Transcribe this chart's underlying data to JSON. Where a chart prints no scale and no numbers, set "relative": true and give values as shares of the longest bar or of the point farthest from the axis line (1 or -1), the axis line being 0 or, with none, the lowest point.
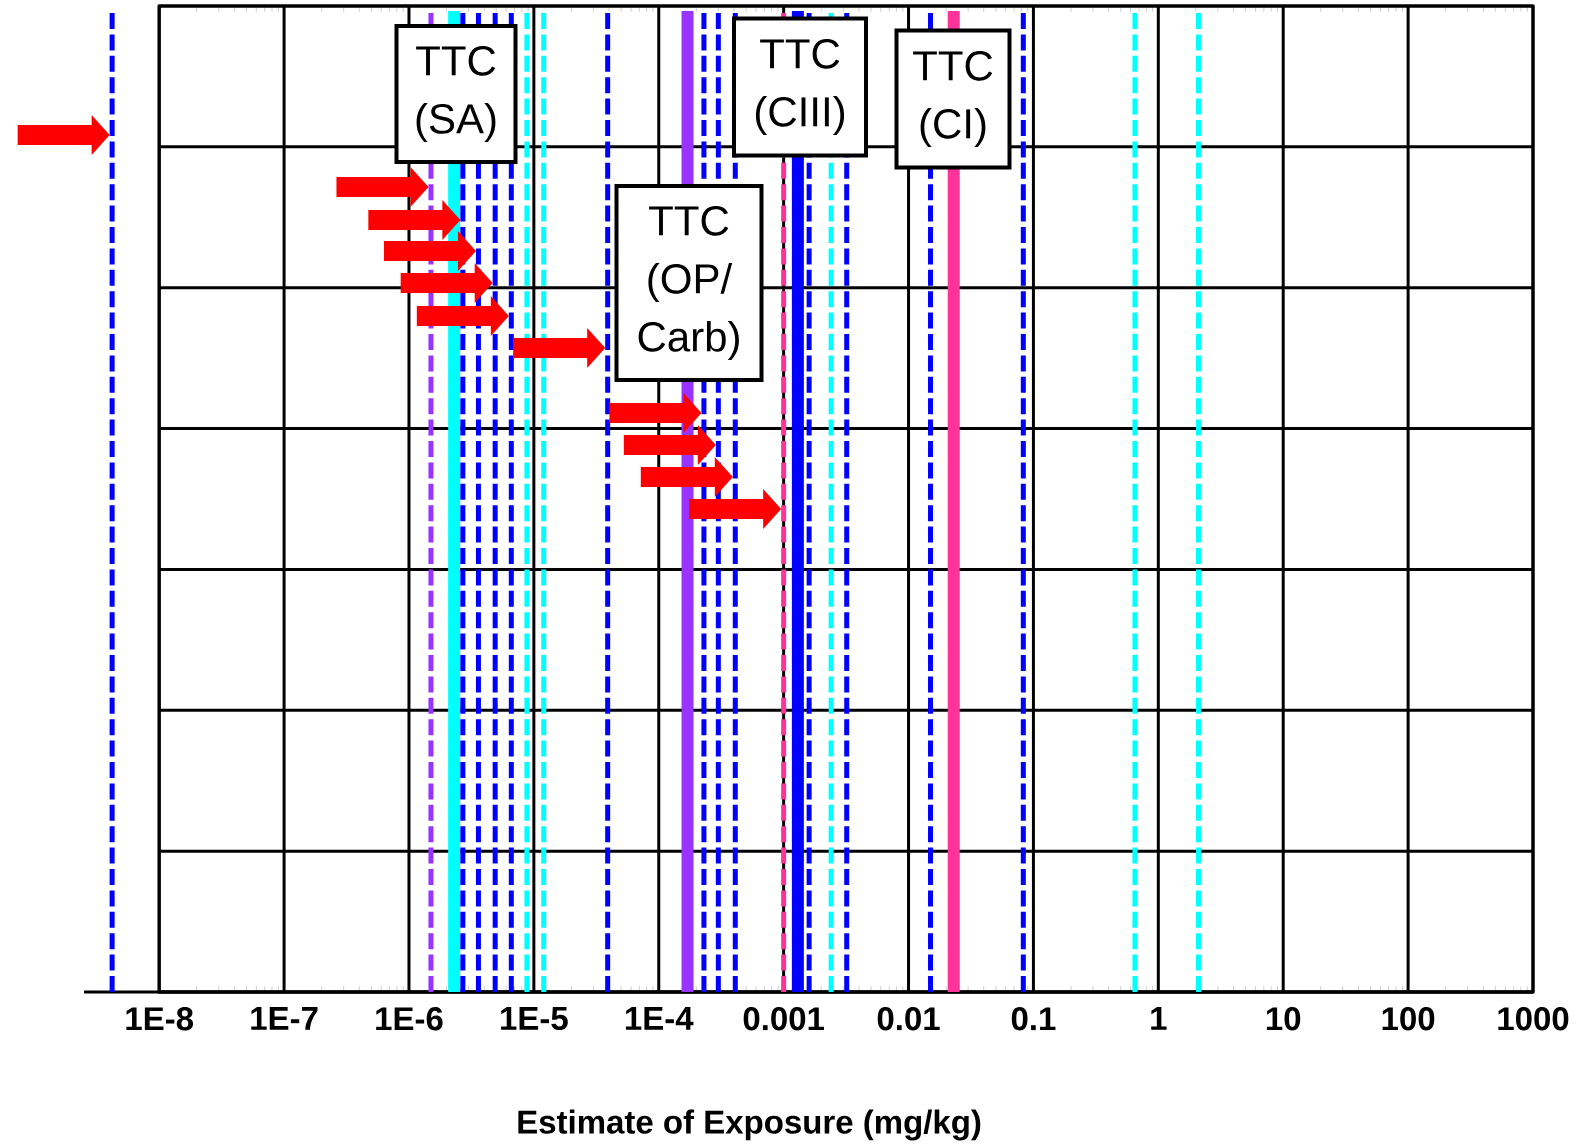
{
  "chart_data": {
    "type": "line",
    "relative": true,
    "xlabel": "Estimate of Exposure (mg/kg)",
    "log": "x",
    "xlim": [
      2.5e-09,
      1000
    ],
    "grid": true,
    "xticks": [
      {
        "value": 1e-08,
        "label": "1E-8"
      },
      {
        "value": 1e-07,
        "label": "1E-7"
      },
      {
        "value": 1e-06,
        "label": "1E-6"
      },
      {
        "value": 1e-05,
        "label": "1E-5"
      },
      {
        "value": 0.0001,
        "label": "1E-4"
      },
      {
        "value": 0.001,
        "label": "0.001"
      },
      {
        "value": 0.01,
        "label": "0.01"
      },
      {
        "value": 0.1,
        "label": "0.1"
      },
      {
        "value": 1,
        "label": "1"
      },
      {
        "value": 10,
        "label": "10"
      },
      {
        "value": 100,
        "label": "100"
      },
      {
        "value": 1000,
        "label": "1000"
      }
    ],
    "series": [
      {
        "x": [
          4.2e-09,
          4.2e-09
        ],
        "values": [
          0,
          1
        ],
        "color": "#0000ff",
        "line_style": "dashed"
      },
      {
        "x": [
          1.5e-06,
          1.5e-06
        ],
        "values": [
          0,
          1
        ],
        "color": "#9933ff",
        "line_style": "dashed"
      },
      {
        "x": [
          2.3e-06,
          2.3e-06
        ],
        "values": [
          0,
          1
        ],
        "color": "#00ffff",
        "line_style": "solid"
      },
      {
        "x": [
          2.7e-06,
          2.7e-06
        ],
        "values": [
          0,
          1
        ],
        "color": "#0000ff",
        "line_style": "dashed"
      },
      {
        "x": [
          3.6e-06,
          3.6e-06
        ],
        "values": [
          0,
          1
        ],
        "color": "#0000ff",
        "line_style": "dashed"
      },
      {
        "x": [
          4.9e-06,
          4.9e-06
        ],
        "values": [
          0,
          1
        ],
        "color": "#0000ff",
        "line_style": "dashed"
      },
      {
        "x": [
          6.6e-06,
          6.6e-06
        ],
        "values": [
          0,
          1
        ],
        "color": "#0000ff",
        "line_style": "dashed"
      },
      {
        "x": [
          8.8e-06,
          8.8e-06
        ],
        "values": [
          0,
          1
        ],
        "color": "#00ffff",
        "line_style": "dashed"
      },
      {
        "x": [
          1.2e-05,
          1.2e-05
        ],
        "values": [
          0,
          1
        ],
        "color": "#00ffff",
        "line_style": "dashed"
      },
      {
        "x": [
          3.9e-05,
          3.9e-05
        ],
        "values": [
          0,
          1
        ],
        "color": "#0000ff",
        "line_style": "dashed"
      },
      {
        "x": [
          0.00017,
          0.00017
        ],
        "values": [
          0,
          1
        ],
        "color": "#9933ff",
        "line_style": "solid"
      },
      {
        "x": [
          0.00023,
          0.00023
        ],
        "values": [
          0,
          1
        ],
        "color": "#0000ff",
        "line_style": "dashed"
      },
      {
        "x": [
          0.0003,
          0.0003
        ],
        "values": [
          0,
          1
        ],
        "color": "#0000ff",
        "line_style": "dashed"
      },
      {
        "x": [
          0.00041,
          0.00041
        ],
        "values": [
          0,
          1
        ],
        "color": "#0000ff",
        "line_style": "dashed"
      },
      {
        "x": [
          0.001,
          0.001
        ],
        "values": [
          0,
          1
        ],
        "color": "#ff3399",
        "line_style": "dashed"
      },
      {
        "x": [
          0.0013,
          0.0013
        ],
        "values": [
          0,
          1
        ],
        "color": "#0000ff",
        "line_style": "solid"
      },
      {
        "x": [
          0.0016,
          0.0016
        ],
        "values": [
          0,
          1
        ],
        "color": "#0000ff",
        "line_style": "dashed"
      },
      {
        "x": [
          0.0024,
          0.0024
        ],
        "values": [
          0,
          1
        ],
        "color": "#00ffff",
        "line_style": "dashed"
      },
      {
        "x": [
          0.0032,
          0.0032
        ],
        "values": [
          0,
          1
        ],
        "color": "#0000ff",
        "line_style": "dashed"
      },
      {
        "x": [
          0.015,
          0.015
        ],
        "values": [
          0,
          1
        ],
        "color": "#0000ff",
        "line_style": "dashed"
      },
      {
        "x": [
          0.023,
          0.023
        ],
        "values": [
          0,
          1
        ],
        "color": "#ff3399",
        "line_style": "solid"
      },
      {
        "x": [
          0.083,
          0.083
        ],
        "values": [
          0,
          1
        ],
        "color": "#0000ff",
        "line_style": "dashed"
      },
      {
        "x": [
          0.65,
          0.65
        ],
        "values": [
          0,
          1
        ],
        "color": "#00ffff",
        "line_style": "dashed"
      },
      {
        "x": [
          2.1,
          2.1
        ],
        "values": [
          0,
          1
        ],
        "color": "#00ffff",
        "line_style": "dashed"
      }
    ],
    "annotations": [
      "TTC (SA)",
      "TTC (OP/ Carb)",
      "TTC (CIII)",
      "TTC (CI)"
    ]
  }
}
